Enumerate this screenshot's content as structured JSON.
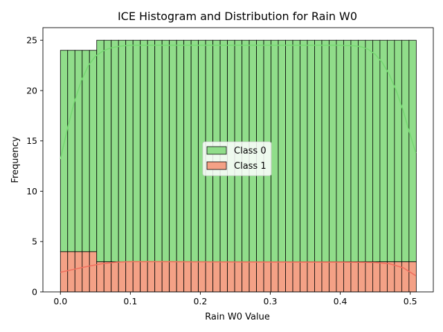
{
  "chart_data": {
    "type": "bar",
    "title": "ICE Histogram and Distribution for Rain W0",
    "xlabel": "Rain W0 Value",
    "ylabel": "Frequency",
    "xlim": [
      -0.025,
      0.533
    ],
    "ylim": [
      0,
      26.25
    ],
    "xticks": [
      0.0,
      0.1,
      0.2,
      0.3,
      0.4,
      0.5
    ],
    "xtick_labels": [
      "0.0",
      "0.1",
      "0.2",
      "0.3",
      "0.4",
      "0.5"
    ],
    "yticks": [
      0,
      5,
      10,
      15,
      20,
      25
    ],
    "ytick_labels": [
      "0",
      "5",
      "10",
      "15",
      "20",
      "25"
    ],
    "grid": false,
    "legend_position": "center",
    "bin_start": 0.0,
    "bin_width": 0.01038,
    "series": [
      {
        "name": "Class 0",
        "color": "#90dd8a",
        "line_color": "#77d873",
        "values": [
          20,
          20,
          20,
          20,
          20,
          22,
          22,
          22,
          22,
          22,
          22,
          22,
          22,
          22,
          22,
          22,
          22,
          22,
          22,
          22,
          22,
          22,
          22,
          22,
          22,
          22,
          22,
          22,
          22,
          22,
          22,
          22,
          22,
          22,
          22,
          22,
          22,
          22,
          22,
          22,
          22,
          22,
          22,
          22,
          22,
          22,
          22,
          22,
          22
        ],
        "kde_x": [
          0.0,
          0.01,
          0.02,
          0.03,
          0.04,
          0.05,
          0.06,
          0.07,
          0.08,
          0.09,
          0.1,
          0.12,
          0.15,
          0.2,
          0.3,
          0.4,
          0.42,
          0.43,
          0.44,
          0.45,
          0.46,
          0.47,
          0.48,
          0.49,
          0.5,
          0.508
        ],
        "kde_y": [
          13.2,
          16.2,
          18.9,
          21.0,
          22.5,
          23.4,
          23.9,
          24.2,
          24.35,
          24.45,
          24.5,
          24.5,
          24.5,
          24.5,
          24.5,
          24.5,
          24.45,
          24.35,
          24.1,
          23.6,
          22.8,
          21.6,
          20.0,
          18.0,
          15.6,
          13.8
        ]
      },
      {
        "name": "Class 1",
        "color": "#f4a186",
        "line_color": "#f06f5e",
        "values": [
          4,
          4,
          4,
          4,
          4,
          3,
          3,
          3,
          3,
          3,
          3,
          3,
          3,
          3,
          3,
          3,
          3,
          3,
          3,
          3,
          3,
          3,
          3,
          3,
          3,
          3,
          3,
          3,
          3,
          3,
          3,
          3,
          3,
          3,
          3,
          3,
          3,
          3,
          3,
          3,
          3,
          3,
          3,
          3,
          3,
          3,
          3,
          3,
          3
        ],
        "kde_x": [
          0.0,
          0.02,
          0.04,
          0.06,
          0.08,
          0.1,
          0.15,
          0.2,
          0.3,
          0.4,
          0.45,
          0.47,
          0.49,
          0.508
        ],
        "kde_y": [
          1.95,
          2.25,
          2.55,
          2.8,
          2.95,
          3.0,
          3.0,
          2.98,
          2.97,
          2.96,
          2.92,
          2.8,
          2.4,
          1.6
        ]
      }
    ]
  }
}
